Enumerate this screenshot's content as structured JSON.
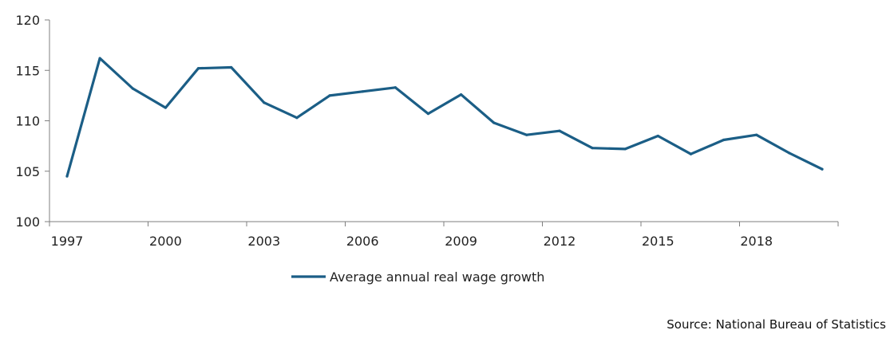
{
  "chart_data": {
    "type": "line",
    "x": [
      1997,
      1998,
      1999,
      2000,
      2001,
      2002,
      2003,
      2004,
      2005,
      2006,
      2007,
      2008,
      2009,
      2010,
      2011,
      2012,
      2013,
      2014,
      2015,
      2016,
      2017,
      2018,
      2019,
      2020
    ],
    "series": [
      {
        "name": "Average annual real wage growth",
        "values": [
          104.5,
          116.2,
          113.2,
          111.3,
          115.2,
          115.3,
          111.8,
          110.3,
          112.5,
          112.9,
          113.3,
          110.7,
          112.6,
          109.8,
          108.6,
          109.0,
          107.3,
          107.2,
          108.5,
          106.7,
          108.1,
          108.6,
          106.8,
          105.2
        ],
        "color": "#1b5e86"
      }
    ],
    "x_tick_labels": [
      "1997",
      "2000",
      "2003",
      "2006",
      "2009",
      "2012",
      "2015",
      "2018"
    ],
    "y_ticks": [
      100,
      105,
      110,
      115,
      120
    ],
    "ylim": [
      100,
      120
    ],
    "title": "",
    "xlabel": "",
    "ylabel": "",
    "grid": false,
    "legend_position": "bottom-center"
  },
  "source_note": "Source: National Bureau of Statistics"
}
